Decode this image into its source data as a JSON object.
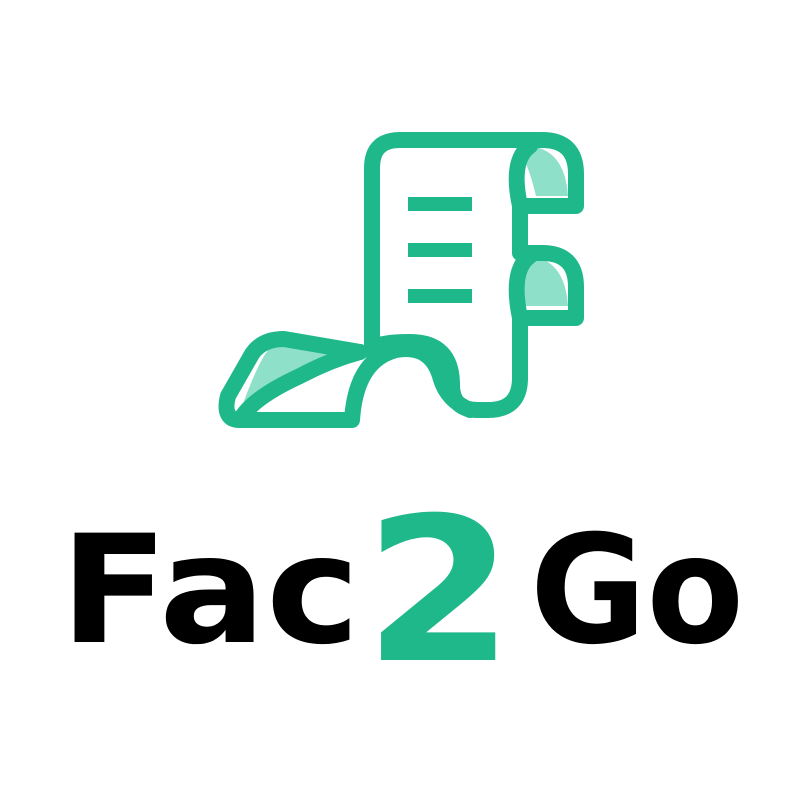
{
  "brand": {
    "name_part1": "Fac",
    "name_part2": "2",
    "name_part3": "Go",
    "primary_color": "#1fb88a",
    "light_color": "#8fe0c8",
    "text_color": "#000000",
    "background": "#ffffff"
  },
  "icon": {
    "name": "receipt-scroll-icon"
  }
}
